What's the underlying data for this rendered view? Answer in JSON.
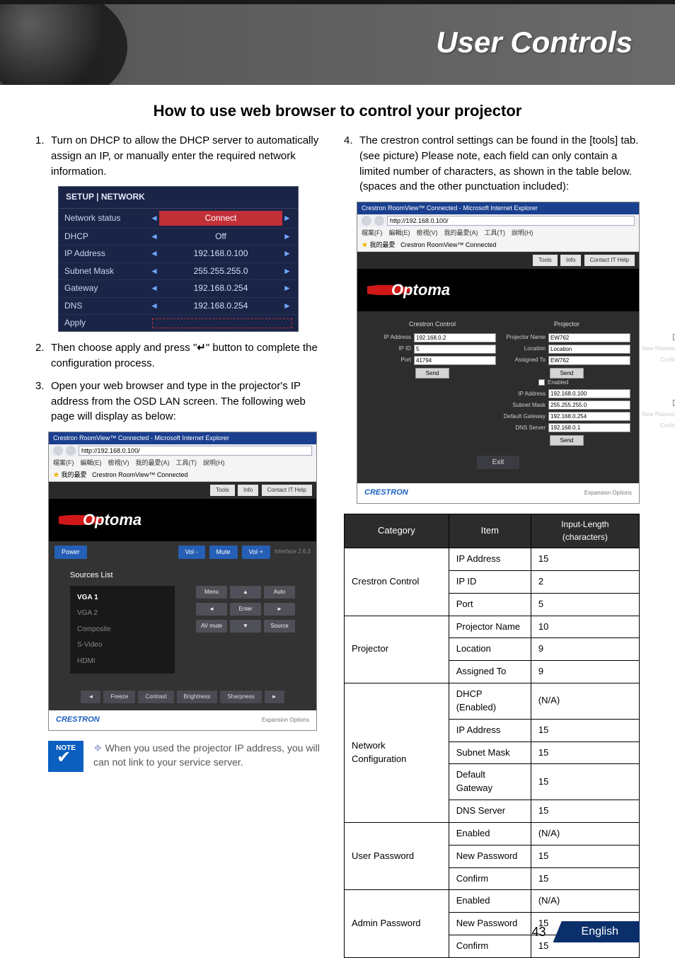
{
  "header": {
    "title": "User Controls"
  },
  "section_title": "How to use web browser to control your projector",
  "steps_left": [
    {
      "n": "1.",
      "text": "Turn on DHCP to allow the DHCP server to automatically assign an IP, or manually enter the required network information."
    },
    {
      "n": "2.",
      "text": "Then choose apply and press \" ↵ \" button to complete the configuration process."
    },
    {
      "n": "3.",
      "text": "Open your web browser and type in the projector's IP address from the OSD LAN screen. The following web page will display as below:"
    }
  ],
  "steps_right": [
    {
      "n": "4.",
      "text": "The crestron control settings can be found in the [tools] tab.(see picture) Please note, each field can only contain a limited number of characters, as shown in the table below. (spaces and the other punctuation included):"
    }
  ],
  "osd": {
    "title": "SETUP | NETWORK",
    "rows": [
      {
        "label": "Network status",
        "value": "Connect",
        "style": "connect"
      },
      {
        "label": "DHCP",
        "value": "Off"
      },
      {
        "label": "IP Address",
        "value": "192.168.0.100"
      },
      {
        "label": "Subnet Mask",
        "value": "255.255.255.0"
      },
      {
        "label": "Gateway",
        "value": "192.168.0.254"
      },
      {
        "label": "DNS",
        "value": "192.168.0.254"
      },
      {
        "label": "Apply",
        "value": "",
        "style": "apply"
      }
    ]
  },
  "browser": {
    "titlebar": "Crestron RoomView™ Connected - Microsoft Internet Explorer",
    "url": "http://192.168.0.100/",
    "menu": "檔案(F)　編輯(E)　檢視(V)　我的最愛(A)　工具(T)　說明(H)",
    "fav_label": "我的最愛",
    "page_label": "Crestron RoomView™ Connected",
    "tabs": [
      "Tools",
      "Info",
      "Contact IT Help"
    ],
    "logo": "Optoma",
    "ctrlbar": [
      "Power",
      "Vol -",
      "Mute",
      "Vol +"
    ],
    "version": "Interface 2.6.3",
    "sources_title": "Sources List",
    "sources": [
      "VGA 1",
      "VGA 2",
      "Composite",
      "S-Video",
      "HDMI"
    ],
    "nav_btns": [
      [
        "Menu",
        "▲",
        "Auto"
      ],
      [
        "◄",
        "Enter",
        "►"
      ],
      [
        "AV mute",
        "▼",
        "Source"
      ]
    ],
    "bottom": [
      "Freeze",
      "Contrast",
      "Brightness",
      "Sharpness"
    ],
    "footer_brand": "CRESTRON",
    "footer_link": "Expansion Options"
  },
  "tools": {
    "cols": [
      {
        "head": "Crestron Control",
        "fields": [
          {
            "label": "IP Address",
            "value": "192.168.0.2"
          },
          {
            "label": "IP ID",
            "value": "5"
          },
          {
            "label": "Port",
            "value": "41794"
          }
        ]
      },
      {
        "head": "Projector",
        "fields": [
          {
            "label": "Projector Name",
            "value": "EW762"
          },
          {
            "label": "Location",
            "value": "Location"
          },
          {
            "label": "Assigned To",
            "value": "EW762"
          }
        ],
        "extra": [
          {
            "label": "DHCP",
            "chk": "Enabled"
          },
          {
            "label": "IP Address",
            "value": "192.168.0.100"
          },
          {
            "label": "Subnet Mask",
            "value": "255.255.255.0"
          },
          {
            "label": "Default Gateway",
            "value": "192.168.0.254"
          },
          {
            "label": "DNS Server",
            "value": "192.168.0.1"
          }
        ]
      },
      {
        "head": "User Password",
        "chk": "Enabled",
        "fields": [
          {
            "label": "New Password",
            "value": ""
          },
          {
            "label": "Confirm",
            "value": ""
          }
        ],
        "head2": "Admin Password",
        "chk2": "Enabled",
        "fields2": [
          {
            "label": "New Password",
            "value": ""
          },
          {
            "label": "Confirm",
            "value": ""
          }
        ]
      }
    ],
    "send": "Send",
    "exit": "Exit"
  },
  "note": "When you used the projector IP address, you will can not link to your service server.",
  "note_badge": "NOTE",
  "char_table": {
    "headers": [
      "Category",
      "Item",
      "Input-Length (characters)"
    ],
    "groups": [
      {
        "cat": "Crestron Control",
        "rows": [
          [
            "IP Address",
            "15"
          ],
          [
            "IP ID",
            "2"
          ],
          [
            "Port",
            "5"
          ]
        ]
      },
      {
        "cat": "Projector",
        "rows": [
          [
            "Projector Name",
            "10"
          ],
          [
            "Location",
            "9"
          ],
          [
            "Assigned To",
            "9"
          ]
        ]
      },
      {
        "cat": "Network Configuration",
        "rows": [
          [
            "DHCP (Enabled)",
            "(N/A)"
          ],
          [
            "IP Address",
            "15"
          ],
          [
            "Subnet Mask",
            "15"
          ],
          [
            "Default Gateway",
            "15"
          ],
          [
            "DNS Server",
            "15"
          ]
        ]
      },
      {
        "cat": "User Password",
        "rows": [
          [
            "Enabled",
            "(N/A)"
          ],
          [
            "New Password",
            "15"
          ],
          [
            "Confirm",
            "15"
          ]
        ]
      },
      {
        "cat": "Admin Password",
        "rows": [
          [
            "Enabled",
            "(N/A)"
          ],
          [
            "New Password",
            "15"
          ],
          [
            "Confirm",
            "15"
          ]
        ]
      }
    ]
  },
  "footer": {
    "page": "43",
    "lang": "English"
  }
}
